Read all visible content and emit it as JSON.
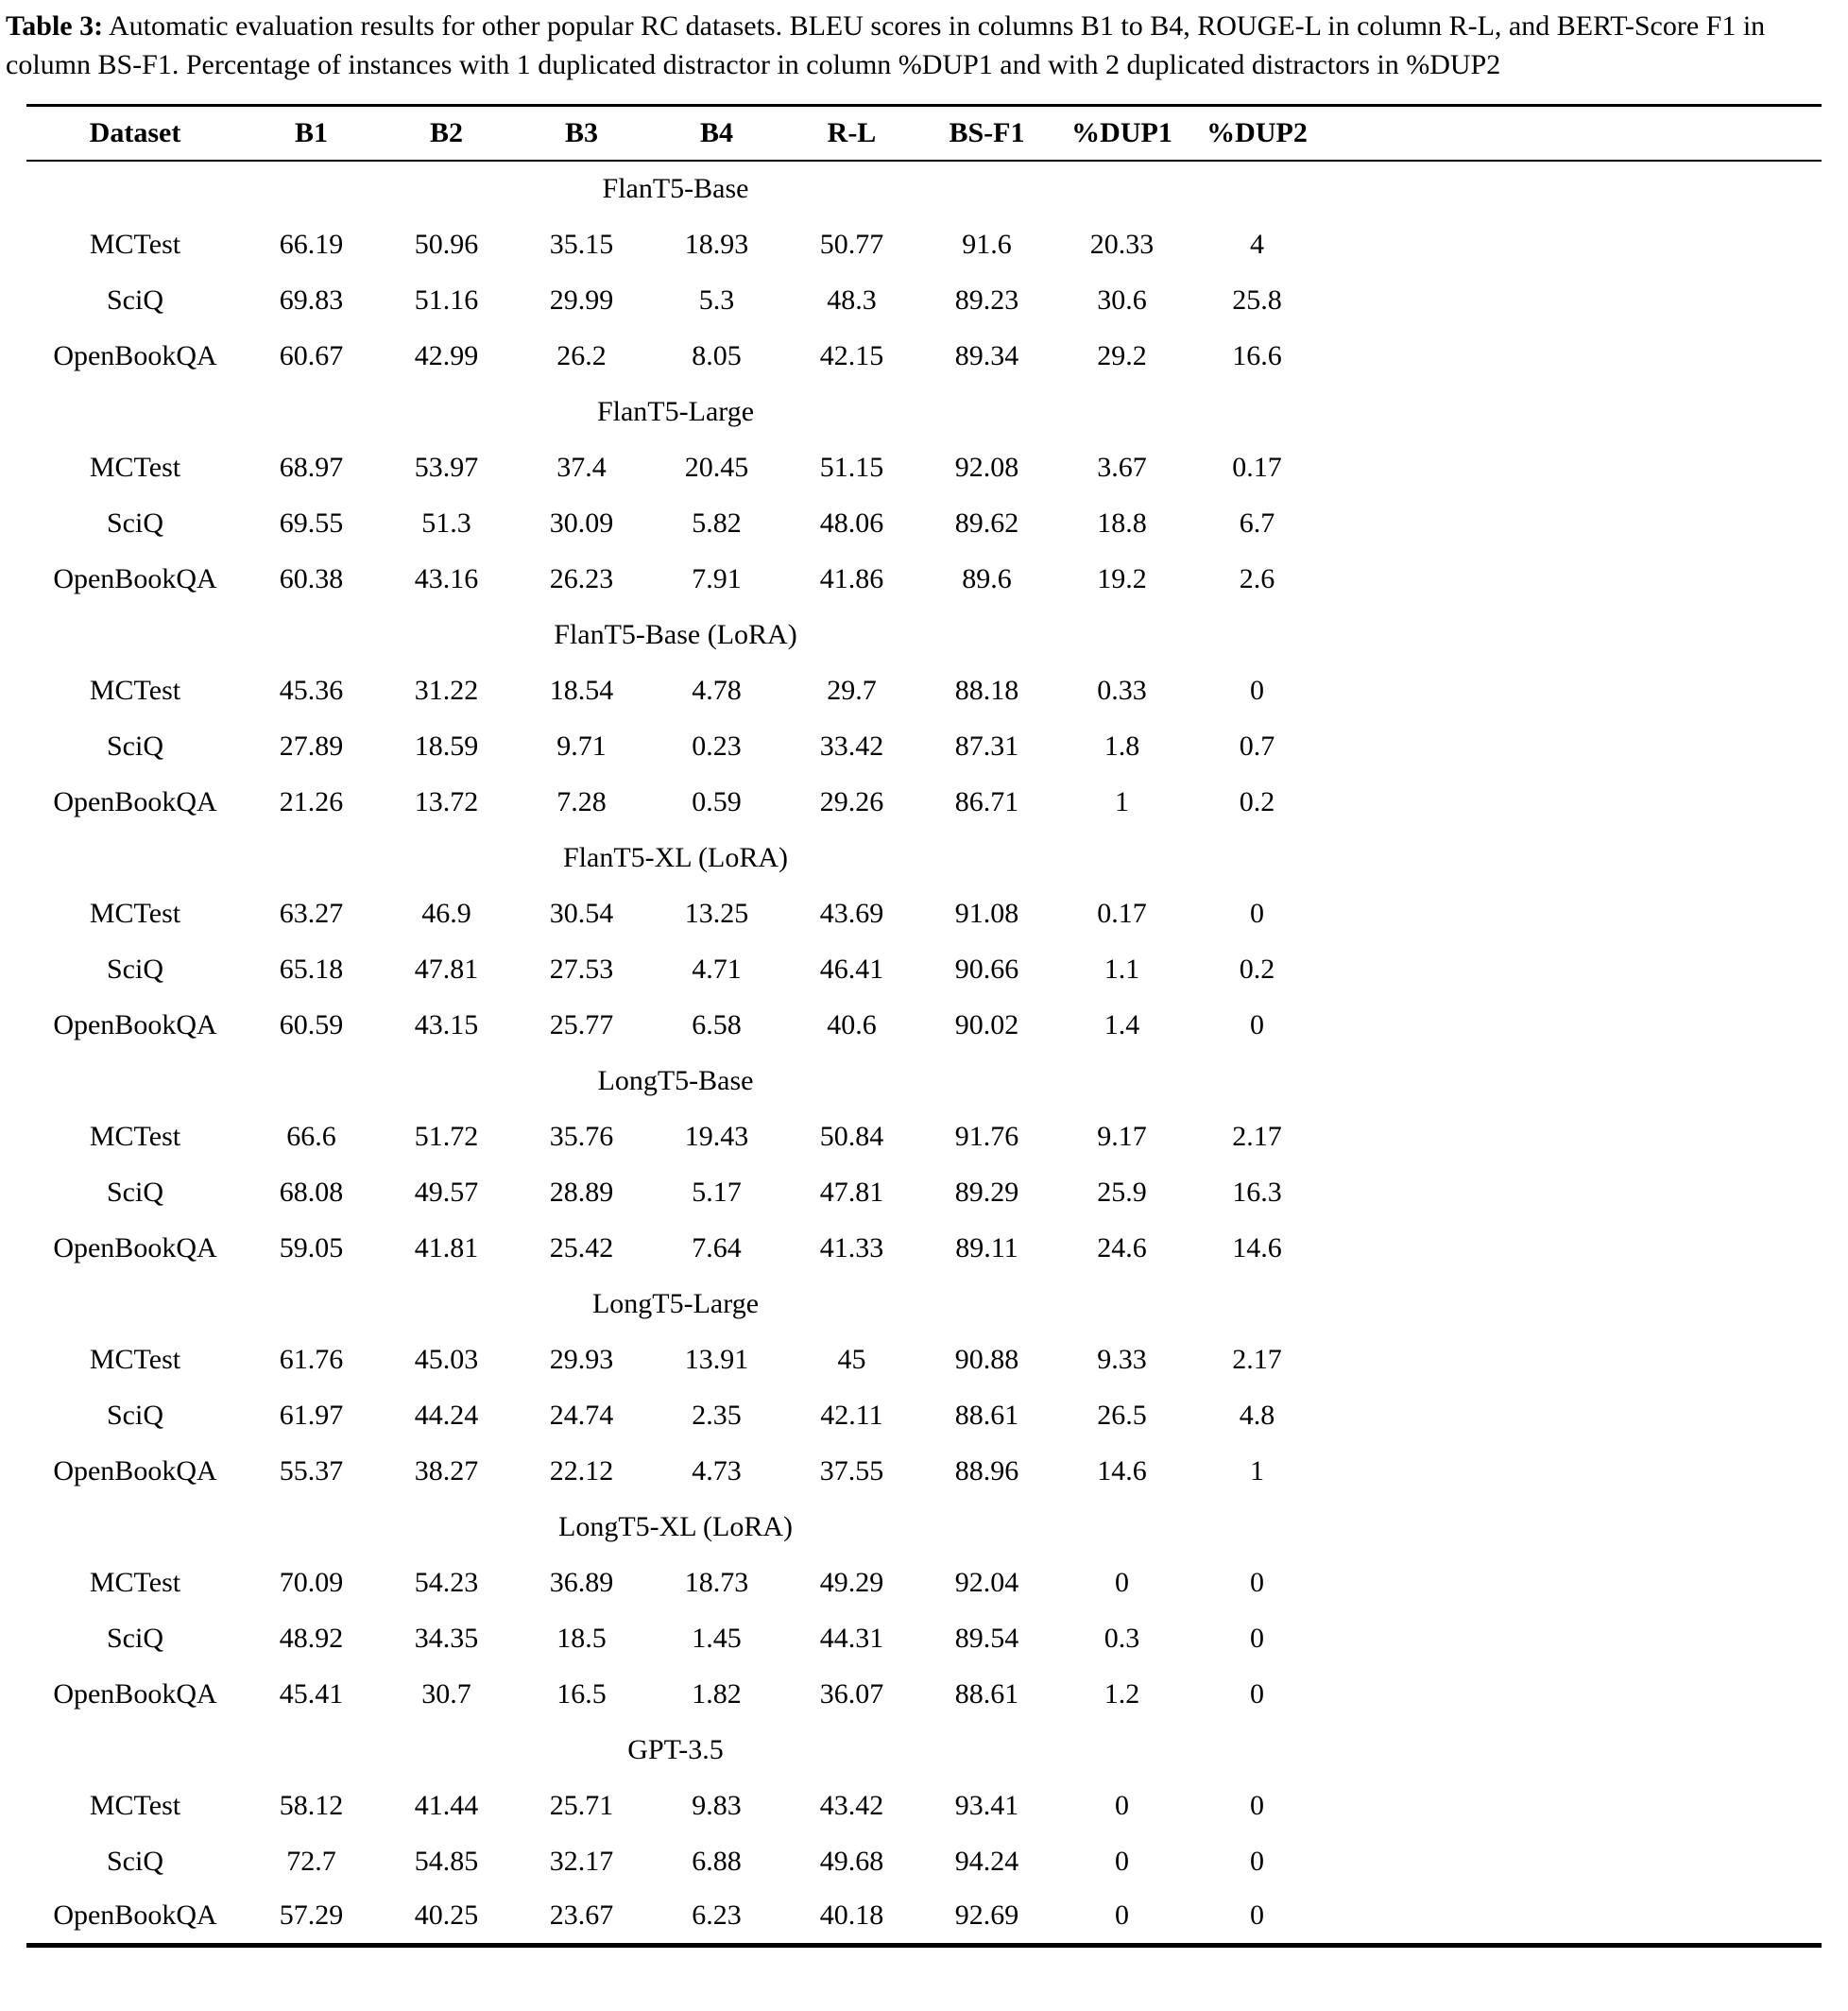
{
  "caption": {
    "label": "Table 3:",
    "text": " Automatic evaluation results for other popular RC datasets. BLEU scores in columns B1 to B4, ROUGE-L in column R-L, and BERT-Score F1 in column BS-F1. Percentage of instances with 1 duplicated distractor in column %DUP1 and with 2 duplicated distractors in %DUP2"
  },
  "table": {
    "columns": [
      "Dataset",
      "B1",
      "B2",
      "B3",
      "B4",
      "R-L",
      "BS-F1",
      "%DUP1",
      "%DUP2"
    ],
    "groups": [
      {
        "name": "FlanT5-Base",
        "rows": [
          {
            "dataset": "MCTest",
            "values": [
              "66.19",
              "50.96",
              "35.15",
              "18.93",
              "50.77",
              "91.6",
              "20.33",
              "4"
            ]
          },
          {
            "dataset": "SciQ",
            "values": [
              "69.83",
              "51.16",
              "29.99",
              "5.3",
              "48.3",
              "89.23",
              "30.6",
              "25.8"
            ]
          },
          {
            "dataset": "OpenBookQA",
            "values": [
              "60.67",
              "42.99",
              "26.2",
              "8.05",
              "42.15",
              "89.34",
              "29.2",
              "16.6"
            ]
          }
        ]
      },
      {
        "name": "FlanT5-Large",
        "rows": [
          {
            "dataset": "MCTest",
            "values": [
              "68.97",
              "53.97",
              "37.4",
              "20.45",
              "51.15",
              "92.08",
              "3.67",
              "0.17"
            ]
          },
          {
            "dataset": "SciQ",
            "values": [
              "69.55",
              "51.3",
              "30.09",
              "5.82",
              "48.06",
              "89.62",
              "18.8",
              "6.7"
            ]
          },
          {
            "dataset": "OpenBookQA",
            "values": [
              "60.38",
              "43.16",
              "26.23",
              "7.91",
              "41.86",
              "89.6",
              "19.2",
              "2.6"
            ]
          }
        ]
      },
      {
        "name": "FlanT5-Base (LoRA)",
        "rows": [
          {
            "dataset": "MCTest",
            "values": [
              "45.36",
              "31.22",
              "18.54",
              "4.78",
              "29.7",
              "88.18",
              "0.33",
              "0"
            ]
          },
          {
            "dataset": "SciQ",
            "values": [
              "27.89",
              "18.59",
              "9.71",
              "0.23",
              "33.42",
              "87.31",
              "1.8",
              "0.7"
            ]
          },
          {
            "dataset": "OpenBookQA",
            "values": [
              "21.26",
              "13.72",
              "7.28",
              "0.59",
              "29.26",
              "86.71",
              "1",
              "0.2"
            ]
          }
        ]
      },
      {
        "name": "FlanT5-XL (LoRA)",
        "rows": [
          {
            "dataset": "MCTest",
            "values": [
              "63.27",
              "46.9",
              "30.54",
              "13.25",
              "43.69",
              "91.08",
              "0.17",
              "0"
            ]
          },
          {
            "dataset": "SciQ",
            "values": [
              "65.18",
              "47.81",
              "27.53",
              "4.71",
              "46.41",
              "90.66",
              "1.1",
              "0.2"
            ]
          },
          {
            "dataset": "OpenBookQA",
            "values": [
              "60.59",
              "43.15",
              "25.77",
              "6.58",
              "40.6",
              "90.02",
              "1.4",
              "0"
            ]
          }
        ]
      },
      {
        "name": "LongT5-Base",
        "rows": [
          {
            "dataset": "MCTest",
            "values": [
              "66.6",
              "51.72",
              "35.76",
              "19.43",
              "50.84",
              "91.76",
              "9.17",
              "2.17"
            ]
          },
          {
            "dataset": "SciQ",
            "values": [
              "68.08",
              "49.57",
              "28.89",
              "5.17",
              "47.81",
              "89.29",
              "25.9",
              "16.3"
            ]
          },
          {
            "dataset": "OpenBookQA",
            "values": [
              "59.05",
              "41.81",
              "25.42",
              "7.64",
              "41.33",
              "89.11",
              "24.6",
              "14.6"
            ]
          }
        ]
      },
      {
        "name": "LongT5-Large",
        "rows": [
          {
            "dataset": "MCTest",
            "values": [
              "61.76",
              "45.03",
              "29.93",
              "13.91",
              "45",
              "90.88",
              "9.33",
              "2.17"
            ]
          },
          {
            "dataset": "SciQ",
            "values": [
              "61.97",
              "44.24",
              "24.74",
              "2.35",
              "42.11",
              "88.61",
              "26.5",
              "4.8"
            ]
          },
          {
            "dataset": "OpenBookQA",
            "values": [
              "55.37",
              "38.27",
              "22.12",
              "4.73",
              "37.55",
              "88.96",
              "14.6",
              "1"
            ]
          }
        ]
      },
      {
        "name": "LongT5-XL (LoRA)",
        "rows": [
          {
            "dataset": "MCTest",
            "values": [
              "70.09",
              "54.23",
              "36.89",
              "18.73",
              "49.29",
              "92.04",
              "0",
              "0"
            ]
          },
          {
            "dataset": "SciQ",
            "values": [
              "48.92",
              "34.35",
              "18.5",
              "1.45",
              "44.31",
              "89.54",
              "0.3",
              "0"
            ]
          },
          {
            "dataset": "OpenBookQA",
            "values": [
              "45.41",
              "30.7",
              "16.5",
              "1.82",
              "36.07",
              "88.61",
              "1.2",
              "0"
            ]
          }
        ]
      },
      {
        "name": "GPT-3.5",
        "rows": [
          {
            "dataset": "MCTest",
            "values": [
              "58.12",
              "41.44",
              "25.71",
              "9.83",
              "43.42",
              "93.41",
              "0",
              "0"
            ]
          },
          {
            "dataset": "SciQ",
            "values": [
              "72.7",
              "54.85",
              "32.17",
              "6.88",
              "49.68",
              "94.24",
              "0",
              "0"
            ]
          },
          {
            "dataset": "OpenBookQA",
            "values": [
              "57.29",
              "40.25",
              "23.67",
              "6.23",
              "40.18",
              "92.69",
              "0",
              "0"
            ]
          }
        ]
      }
    ]
  }
}
